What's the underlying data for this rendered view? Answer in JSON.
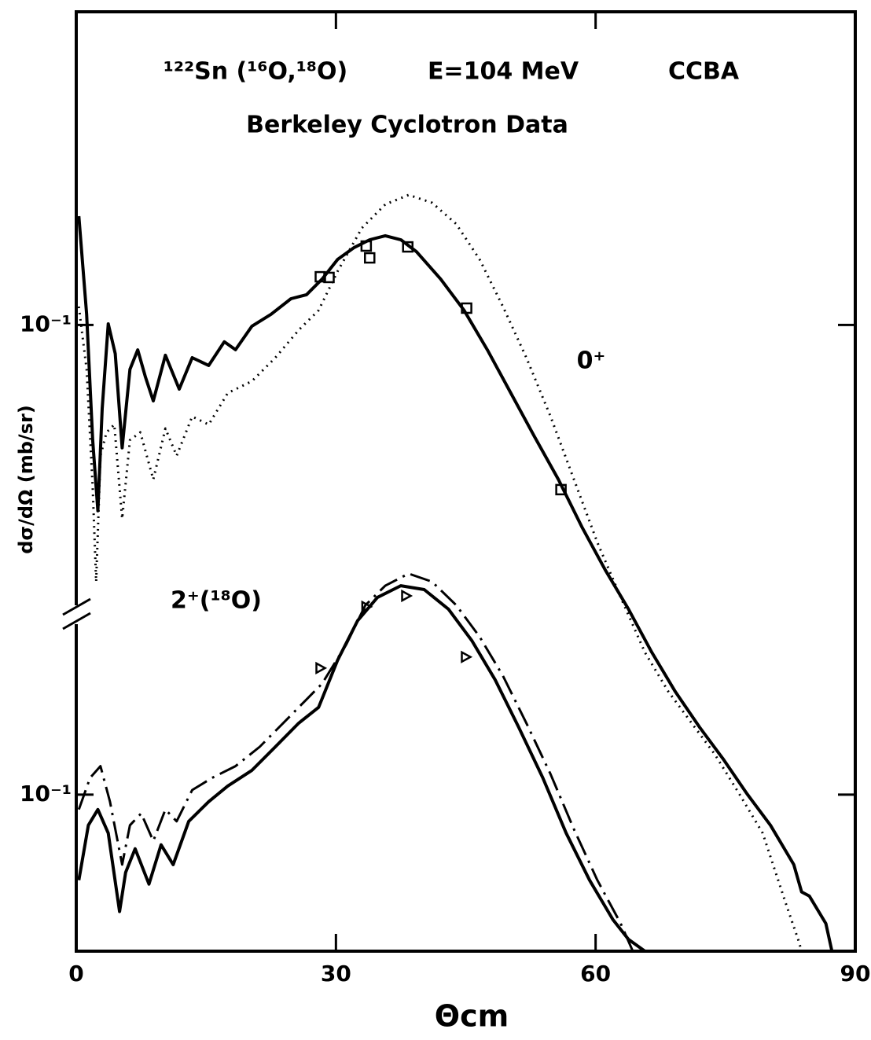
{
  "chart_data": [
    {
      "type": "line",
      "title": "¹²²Sn  (¹⁶O,¹⁸O)",
      "energy": "E=104  MeV",
      "method": "CCBA",
      "subtitle": "Berkeley  Cyclotron  Data",
      "annotation": "0⁺",
      "xlabel": "Θcm",
      "ylabel": "dσ/dΩ (mb/sr)",
      "xlim": [
        0,
        90
      ],
      "ylim": [
        1e-05,
        10
      ],
      "log_y": true,
      "xticks": [
        0,
        30,
        60,
        90
      ],
      "yticks": [
        {
          "value": 0.1,
          "label": "10⁻¹"
        }
      ],
      "series": [
        {
          "color": "#000000",
          "style": "solid",
          "x": [
            0.3,
            1.2,
            1.9,
            2.5,
            3.0,
            3.7,
            4.5,
            5.3,
            6.2,
            7.1,
            8.0,
            8.9,
            10.3,
            11.9,
            13.4,
            15.3,
            17.1,
            18.4,
            20.3,
            22.5,
            24.8,
            26.6,
            28.4,
            30.2,
            32.1,
            33.9,
            35.7,
            37.5,
            39.3,
            42.1,
            44.8,
            47.5,
            50.2,
            52.9,
            55.7,
            58.4,
            61.1,
            63.8,
            66.5,
            69.2,
            72.0,
            74.7,
            77.5,
            80.2,
            82.9,
            83.8,
            84.7,
            86.6,
            87.3
          ],
          "values": [
            0.495,
            0.117,
            0.0184,
            0.0065,
            0.0292,
            0.1016,
            0.0655,
            0.0164,
            0.052,
            0.0693,
            0.0463,
            0.0327,
            0.064,
            0.0389,
            0.0618,
            0.0551,
            0.078,
            0.0694,
            0.0982,
            0.117,
            0.147,
            0.156,
            0.196,
            0.262,
            0.312,
            0.35,
            0.371,
            0.35,
            0.294,
            0.196,
            0.124,
            0.0693,
            0.0367,
            0.0195,
            0.0103,
            0.00515,
            0.00273,
            0.00153,
            0.00081,
            0.000455,
            0.00027,
            0.00017,
            0.000101,
            6.37e-05,
            3.57e-05,
            2.39e-05,
            2.25e-05,
            1.5e-05,
            1e-05
          ]
        },
        {
          "color": "#000000",
          "style": "dotted",
          "x": [
            0.3,
            1.2,
            1.9,
            2.3,
            2.8,
            3.5,
            4.4,
            5.3,
            6.2,
            7.4,
            8.9,
            10.3,
            11.6,
            13.4,
            15.3,
            17.5,
            20.3,
            23.0,
            25.7,
            28.0,
            30.2,
            33.0,
            35.7,
            38.4,
            41.1,
            43.9,
            46.6,
            49.3,
            52.0,
            54.8,
            57.5,
            60.2,
            62.9,
            65.7,
            68.4,
            71.1,
            73.8,
            76.6,
            79.3,
            82.0,
            83.4,
            83.8
          ],
          "values": [
            0.131,
            0.052,
            0.00919,
            0.00229,
            0.0146,
            0.0206,
            0.0231,
            0.00578,
            0.0184,
            0.0206,
            0.0103,
            0.0218,
            0.0146,
            0.026,
            0.0231,
            0.0367,
            0.0437,
            0.0618,
            0.0927,
            0.124,
            0.22,
            0.416,
            0.589,
            0.676,
            0.603,
            0.441,
            0.262,
            0.131,
            0.0618,
            0.026,
            0.0103,
            0.00408,
            0.00182,
            0.00081,
            0.000455,
            0.000286,
            0.00018,
            0.000101,
            5.68e-05,
            2e-05,
            1.19e-05,
            1e-05
          ]
        },
        {
          "color": "#000000",
          "style": "markers",
          "marker": "square",
          "x": [
            28.2,
            29.2,
            33.5,
            33.9,
            38.3,
            45.1,
            56.0
          ],
          "values": [
            0.203,
            0.201,
            0.319,
            0.268,
            0.315,
            0.128,
            0.00887
          ]
        }
      ]
    },
    {
      "type": "line",
      "annotation": "2⁺(¹⁸O)",
      "xlim": [
        0,
        90
      ],
      "ylim": [
        0.01,
        10000
      ],
      "log_y": true,
      "yticks": [
        {
          "value": 0.1,
          "label": "10⁻¹"
        }
      ],
      "series": [
        {
          "color": "#000000",
          "style": "solid",
          "x": [
            0.3,
            1.4,
            2.5,
            3.7,
            5.0,
            5.7,
            6.8,
            8.4,
            9.8,
            11.2,
            13.0,
            15.3,
            17.5,
            20.3,
            23.0,
            25.7,
            28.0,
            30.2,
            32.5,
            34.8,
            37.5,
            40.2,
            43.0,
            45.7,
            48.4,
            51.1,
            53.9,
            56.6,
            59.3,
            62.0,
            63.8,
            65.7
          ],
          "values": [
            0.0284,
            0.0637,
            0.0803,
            0.0568,
            0.0179,
            0.0318,
            0.0451,
            0.0268,
            0.0478,
            0.0357,
            0.0675,
            0.0902,
            0.1135,
            0.143,
            0.202,
            0.286,
            0.361,
            0.722,
            1.29,
            1.82,
            2.16,
            2.04,
            1.53,
            0.963,
            0.541,
            0.27,
            0.128,
            0.0568,
            0.0284,
            0.0159,
            0.0119,
            0.01
          ]
        },
        {
          "color": "#000000",
          "style": "dashdot",
          "x": [
            0.3,
            1.6,
            2.8,
            3.9,
            5.3,
            6.2,
            7.5,
            8.9,
            10.3,
            11.6,
            13.4,
            15.7,
            18.4,
            21.2,
            23.9,
            26.6,
            28.4,
            31.2,
            33.4,
            35.7,
            38.4,
            41.1,
            43.9,
            46.6,
            49.3,
            52.0,
            54.8,
            57.5,
            60.2,
            62.9,
            64.3
          ],
          "values": [
            0.0803,
            0.128,
            0.152,
            0.0902,
            0.0357,
            0.0637,
            0.0759,
            0.0506,
            0.0803,
            0.0675,
            0.107,
            0.128,
            0.152,
            0.202,
            0.286,
            0.405,
            0.511,
            0.91,
            1.62,
            2.16,
            2.58,
            2.29,
            1.62,
            1.02,
            0.573,
            0.286,
            0.135,
            0.0601,
            0.0284,
            0.015,
            0.01
          ]
        },
        {
          "color": "#000000",
          "style": "markers",
          "marker": "triangle",
          "x": [
            28.2,
            33.5,
            38.1,
            45.0
          ],
          "values": [
            0.643,
            1.585,
            1.86,
            0.757
          ]
        }
      ]
    }
  ]
}
